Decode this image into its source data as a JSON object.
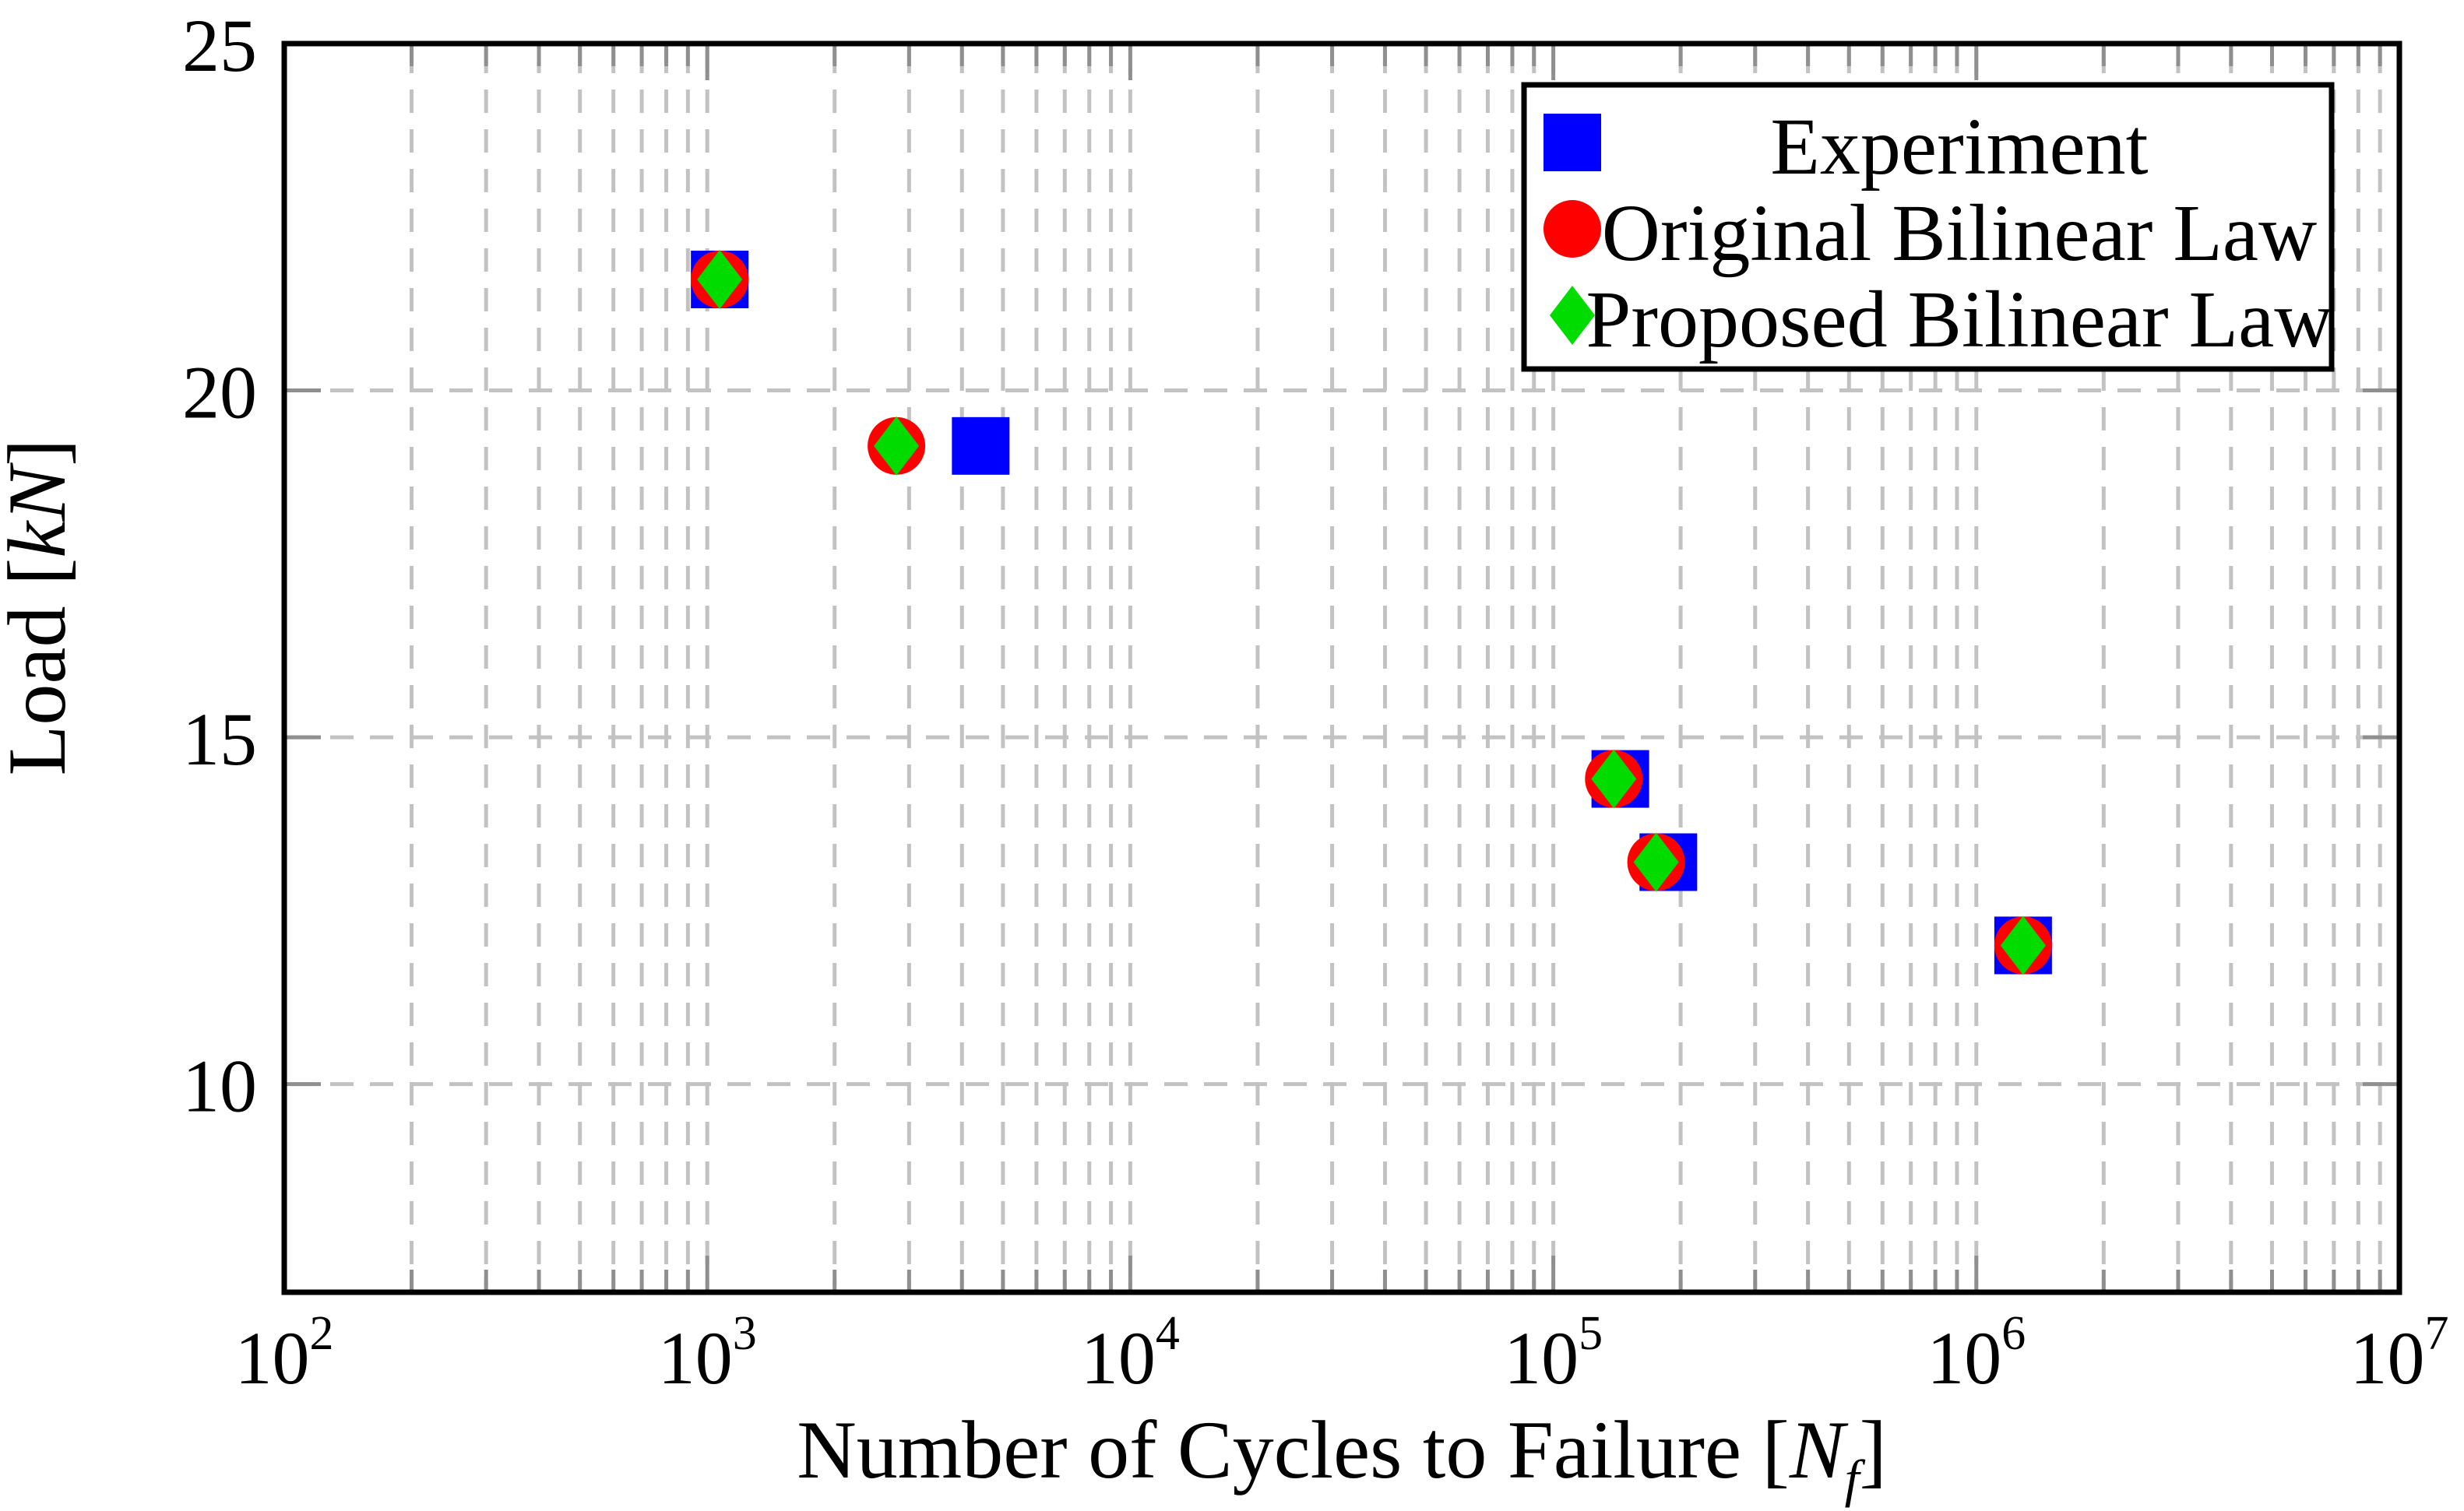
{
  "chart_data": {
    "type": "scatter",
    "title": "",
    "xlabel_plain": "Number of Cycles to Failure [Nf]",
    "ylabel_plain": "Load [kN]",
    "xlabel_rich": [
      {
        "t": "Number of Cycles to Failure ["
      },
      {
        "t": "N",
        "style": "italic"
      },
      {
        "t": "f",
        "style": "italic",
        "script": "sub"
      },
      {
        "t": "]"
      }
    ],
    "ylabel_rich": [
      {
        "t": "Load ["
      },
      {
        "t": "kN",
        "style": "italic"
      },
      {
        "t": "]"
      }
    ],
    "x_scale": "log",
    "xlim": [
      100,
      10000000
    ],
    "ylim": [
      7,
      25
    ],
    "x_ticks": [
      {
        "base": "10",
        "exp": "2",
        "value": 100
      },
      {
        "base": "10",
        "exp": "3",
        "value": 1000
      },
      {
        "base": "10",
        "exp": "4",
        "value": 10000
      },
      {
        "base": "10",
        "exp": "5",
        "value": 100000
      },
      {
        "base": "10",
        "exp": "6",
        "value": 1000000
      },
      {
        "base": "10",
        "exp": "7",
        "value": 10000000
      }
    ],
    "y_ticks": [
      {
        "label": "25",
        "value": 25
      },
      {
        "label": "20",
        "value": 20
      },
      {
        "label": "15",
        "value": 15
      },
      {
        "label": "10",
        "value": 10
      }
    ],
    "y_gridlines": [
      20,
      15,
      10
    ],
    "x_minor_grid": true,
    "grid": true,
    "legend_position": "top-right",
    "series": [
      {
        "name": "Experiment",
        "marker": "square",
        "color": "#0000ff",
        "points": [
          [
            1070,
            21.6
          ],
          [
            4430,
            19.2
          ],
          [
            144000,
            14.4
          ],
          [
            187000,
            13.2
          ],
          [
            1290000,
            12.0
          ]
        ]
      },
      {
        "name": "Original Bilinear Law",
        "marker": "circle",
        "color": "#ff0000",
        "points": [
          [
            1070,
            21.6
          ],
          [
            2800,
            19.2
          ],
          [
            139000,
            14.4
          ],
          [
            175000,
            13.2
          ],
          [
            1290000,
            12.0
          ]
        ]
      },
      {
        "name": "Proposed Bilinear Law",
        "marker": "diamond",
        "color": "#00db00",
        "points": [
          [
            1070,
            21.6
          ],
          [
            2800,
            19.2
          ],
          [
            139000,
            14.4
          ],
          [
            175000,
            13.2
          ],
          [
            1290000,
            12.0
          ]
        ]
      }
    ]
  },
  "style": {
    "background": "#ffffff",
    "axis_color": "#000000",
    "grid_color": "#c2c2c2",
    "tick_color": "#8f8f8f",
    "text_color": "#000000",
    "legend_border_color": "#000000",
    "legend_background": "#ffffff"
  }
}
